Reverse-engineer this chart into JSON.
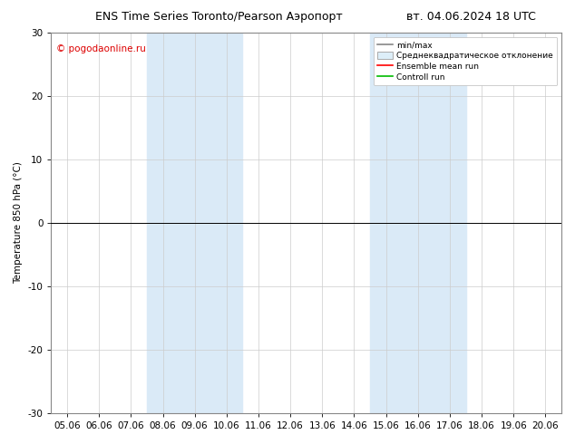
{
  "title_left": "ENS Time Series Toronto/Pearson Аэропорт",
  "title_right": "вт. 04.06.2024 18 UTC",
  "ylabel": "Temperature 850 hPa (°C)",
  "watermark": "© pogodaonline.ru",
  "ylim": [
    -30,
    30
  ],
  "yticks": [
    -30,
    -20,
    -10,
    0,
    10,
    20,
    30
  ],
  "xtick_labels": [
    "05.06",
    "06.06",
    "07.06",
    "08.06",
    "09.06",
    "10.06",
    "11.06",
    "12.06",
    "13.06",
    "14.06",
    "15.06",
    "16.06",
    "17.06",
    "18.06",
    "19.06",
    "20.06"
  ],
  "shaded_band1": [
    3,
    5
  ],
  "shaded_band2": [
    10,
    12
  ],
  "band_color": "#daeaf7",
  "zero_line_y": 0,
  "legend_labels": [
    "min/max",
    "Среднеквадратическое отклонение",
    "Ensemble mean run",
    "Controll run"
  ],
  "legend_line_colors": [
    "#888888",
    "#cccccc",
    "#ff0000",
    "#00bb00"
  ],
  "background_color": "#ffffff",
  "plot_bg_color": "#ffffff",
  "title_fontsize": 9,
  "axis_fontsize": 7.5,
  "watermark_color": "#dd0000",
  "watermark_fontsize": 7.5
}
